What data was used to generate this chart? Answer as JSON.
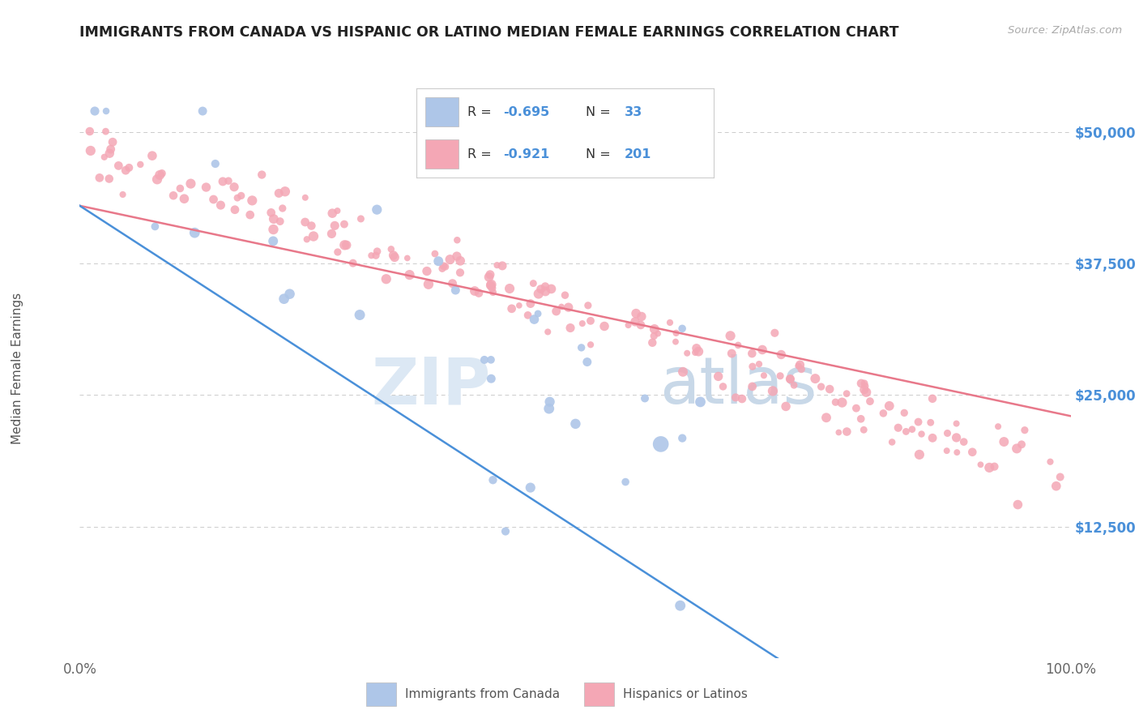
{
  "title": "IMMIGRANTS FROM CANADA VS HISPANIC OR LATINO MEDIAN FEMALE EARNINGS CORRELATION CHART",
  "source": "Source: ZipAtlas.com",
  "ylabel": "Median Female Earnings",
  "xlim": [
    0,
    1
  ],
  "ylim": [
    0,
    55000
  ],
  "yticks": [
    12500,
    25000,
    37500,
    50000
  ],
  "ytick_labels": [
    "$12,500",
    "$25,000",
    "$37,500",
    "$50,000"
  ],
  "xtick_labels": [
    "0.0%",
    "100.0%"
  ],
  "legend_label1": "Immigrants from Canada",
  "legend_label2": "Hispanics or Latinos",
  "R1": "-0.695",
  "N1": "33",
  "R2": "-0.921",
  "N2": "201",
  "color_blue": "#aec6e8",
  "color_pink": "#f4a7b5",
  "line_blue": "#4a90d9",
  "line_pink": "#e8788a",
  "watermark_zip": "ZIP",
  "watermark_atlas": "atlas",
  "background_color": "#ffffff",
  "grid_color": "#cccccc",
  "title_color": "#222222",
  "axis_label_color": "#555555",
  "ytick_color": "#4a90d9",
  "stats_color": "#4a90d9"
}
